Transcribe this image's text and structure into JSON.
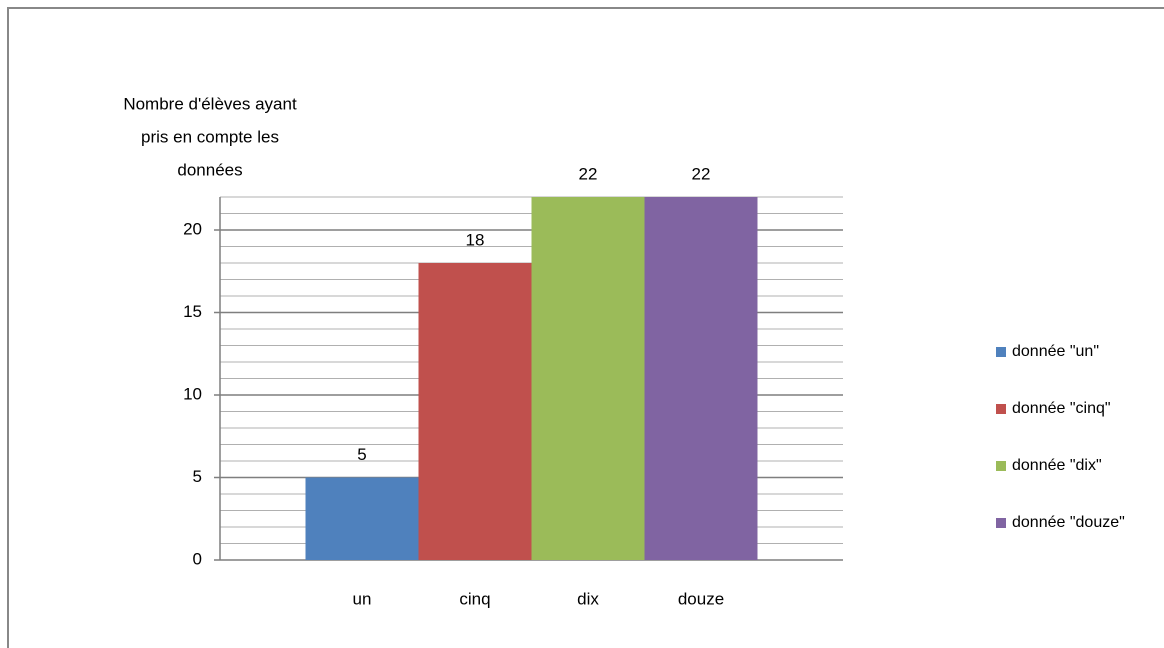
{
  "chart_data": {
    "type": "bar",
    "y_label_lines": [
      "Nombre d'élèves ayant",
      "pris en compte  les",
      "données"
    ],
    "categories": [
      "un",
      "cinq",
      "dix",
      "douze"
    ],
    "values": [
      5,
      18,
      22,
      22
    ],
    "colors": [
      "#4f81bd",
      "#c0504d",
      "#9bbb59",
      "#8064a2"
    ],
    "legend": [
      "donnée \"un\"",
      "donnée \"cinq\"",
      "donnée \"dix\"",
      "donnée \"douze\""
    ],
    "ylim": [
      0,
      22
    ],
    "yticks": [
      0,
      5,
      10,
      15,
      20
    ],
    "grid": true,
    "legend_position": "right"
  }
}
